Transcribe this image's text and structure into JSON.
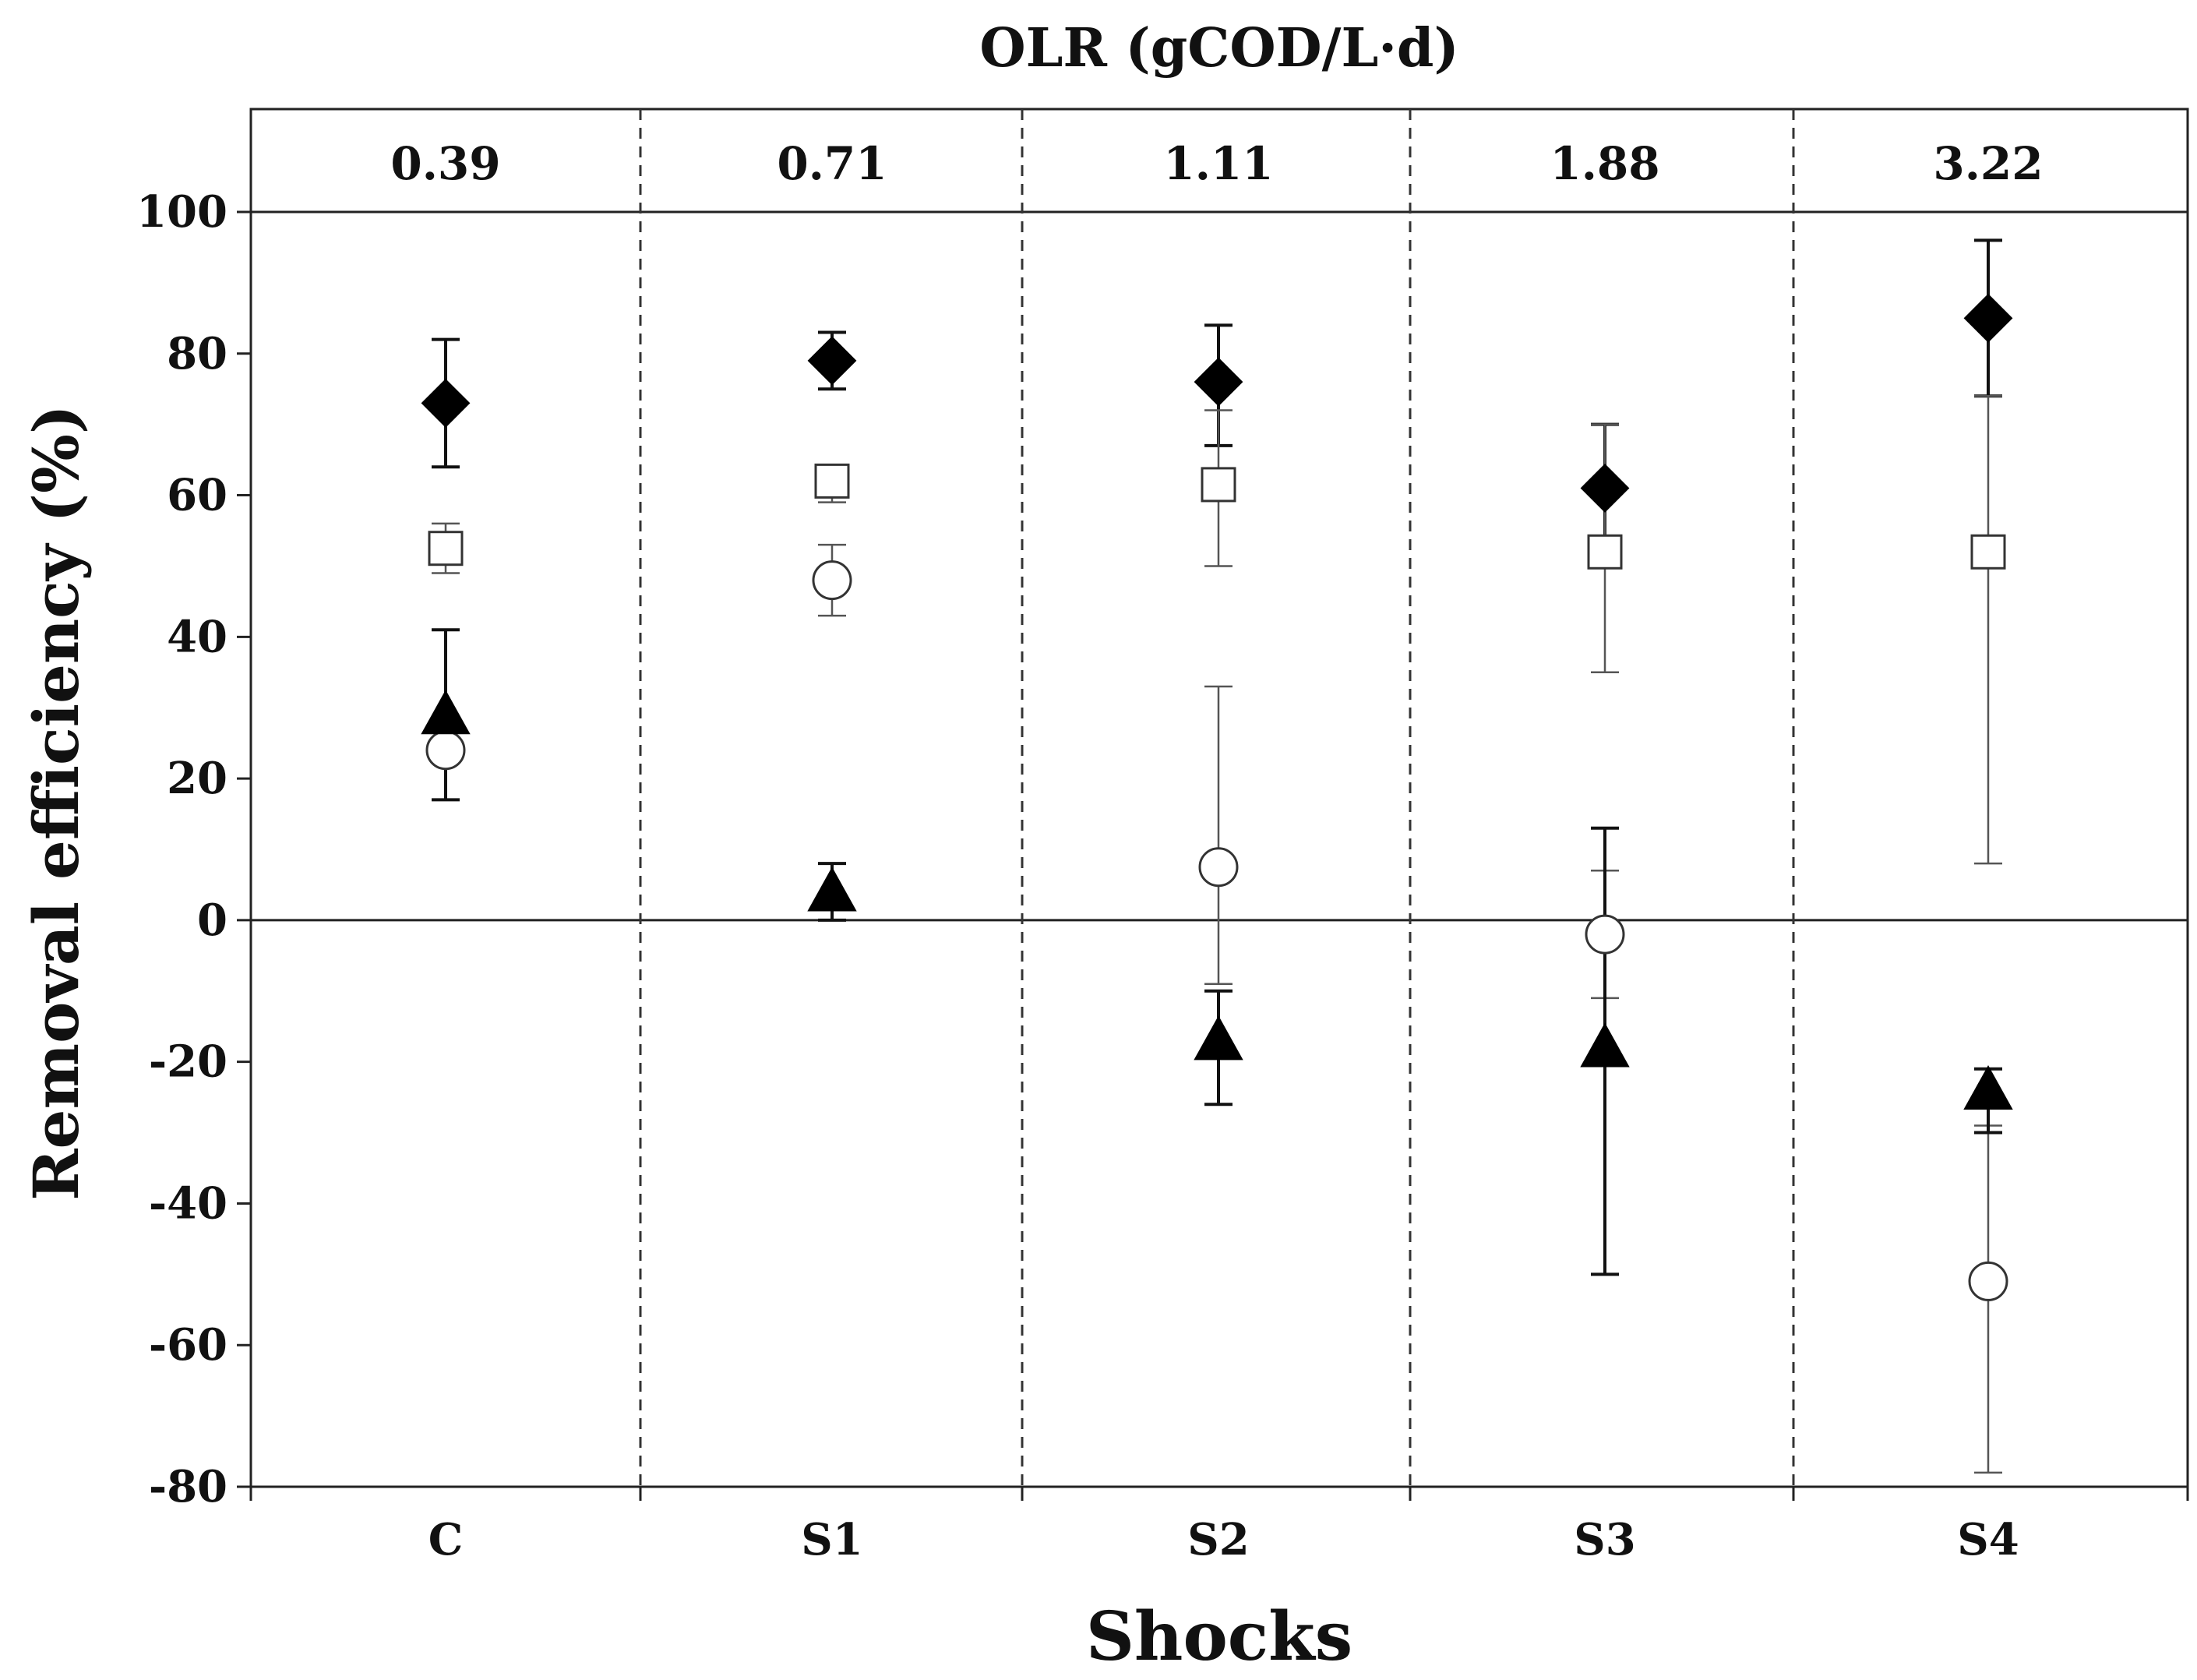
{
  "chart_data": {
    "type": "scatter",
    "title": "OLR (gCOD/L·d)",
    "xlabel": "Shocks",
    "ylabel": "Removal efficiency (%)",
    "categories": [
      "C",
      "S1",
      "S2",
      "S3",
      "S4"
    ],
    "olr_values": [
      "0.39",
      "0.71",
      "1.11",
      "1.88",
      "3.22"
    ],
    "ylim": [
      -80,
      100
    ],
    "yticks": [
      {
        "value": 100,
        "label": "100"
      },
      {
        "value": 80,
        "label": "80"
      },
      {
        "value": 60,
        "label": "60"
      },
      {
        "value": 40,
        "label": "40"
      },
      {
        "value": 20,
        "label": "20"
      },
      {
        "value": 0,
        "label": "0"
      },
      {
        "value": -20,
        "label": "-20"
      },
      {
        "value": -40,
        "label": "-40"
      },
      {
        "value": -60,
        "label": "-60"
      },
      {
        "value": -80,
        "label": "-80"
      }
    ],
    "reference_line": 0,
    "series": [
      {
        "name": "filled-diamond",
        "marker": "diamond",
        "filled": true,
        "values": [
          73,
          79,
          76,
          61,
          85
        ],
        "err_low": [
          64,
          75,
          67,
          53,
          74
        ],
        "err_high": [
          82,
          83,
          84,
          70,
          96
        ]
      },
      {
        "name": "open-square",
        "marker": "square",
        "filled": false,
        "values": [
          52.5,
          62,
          61.5,
          52,
          52
        ],
        "err_low": [
          49,
          59,
          50,
          35,
          8
        ],
        "err_high": [
          56,
          64,
          72,
          70,
          74
        ]
      },
      {
        "name": "open-circle",
        "marker": "circle",
        "filled": false,
        "values": [
          24,
          48,
          7.5,
          -2,
          -51
        ],
        "err_low": [
          17,
          43,
          -9,
          -11,
          -78
        ],
        "err_high": [
          25,
          53,
          33,
          7,
          -29
        ]
      },
      {
        "name": "filled-triangle",
        "marker": "triangle",
        "filled": true,
        "values": [
          29,
          4,
          -17,
          -18,
          -24
        ],
        "err_low": [
          17,
          0,
          -26,
          -50,
          -30
        ],
        "err_high": [
          41,
          8,
          -10,
          13,
          -21
        ]
      }
    ]
  }
}
